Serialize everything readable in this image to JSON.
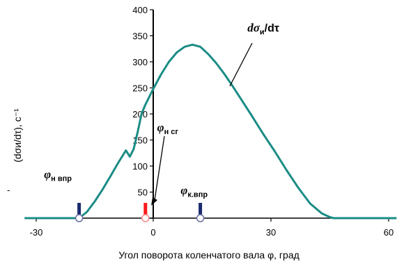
{
  "chart_data": {
    "type": "line",
    "xlabel": "Угол поворота коленчатого вала φ, град",
    "ylabel": "(dσи/dτ), c⁻¹",
    "xlim": [
      -30,
      60
    ],
    "ylim": [
      0,
      400
    ],
    "x_ticks": [
      -30,
      0,
      30,
      60
    ],
    "y_ticks": [
      0,
      50,
      100,
      150,
      200,
      250,
      300,
      350,
      400
    ],
    "grid": false,
    "series_color": "#1a8c85",
    "series": [
      {
        "name": "dσи/dτ",
        "x": [
          -33,
          -19,
          -17,
          -15,
          -13,
          -11,
          -9,
          -7,
          -6,
          -5,
          -4,
          -3,
          -2,
          0,
          2,
          4,
          6,
          8,
          10,
          12,
          14,
          16,
          18,
          20,
          22,
          25,
          28,
          31,
          34,
          37,
          40,
          43,
          45,
          46,
          62
        ],
        "y": [
          0,
          0,
          12,
          32,
          55,
          80,
          106,
          130,
          118,
          133,
          165,
          200,
          218,
          248,
          276,
          300,
          318,
          329,
          333,
          329,
          315,
          298,
          278,
          256,
          233,
          198,
          162,
          128,
          92,
          58,
          28,
          9,
          2,
          0,
          0
        ]
      }
    ],
    "annotations": [
      {
        "main": "dσ",
        "sub": "и",
        "tail": "/dτ",
        "x": 24,
        "y": 358
      },
      {
        "main": "φ",
        "sub": "н сг",
        "x": 1,
        "y": 167
      },
      {
        "main": "φ",
        "sub": "н впр",
        "x": -28,
        "y": 77
      },
      {
        "main": "φ",
        "sub": "к.впр",
        "x": 7,
        "y": 46
      }
    ],
    "markers": [
      {
        "x": -19,
        "y": 0,
        "color": "#1a2a6e"
      },
      {
        "x": -2,
        "y": 0,
        "color": "#ff1a1a"
      },
      {
        "x": 12,
        "y": 0,
        "color": "#1a2a6e"
      }
    ]
  },
  "extra_labels": {
    "left_dash": "-"
  }
}
